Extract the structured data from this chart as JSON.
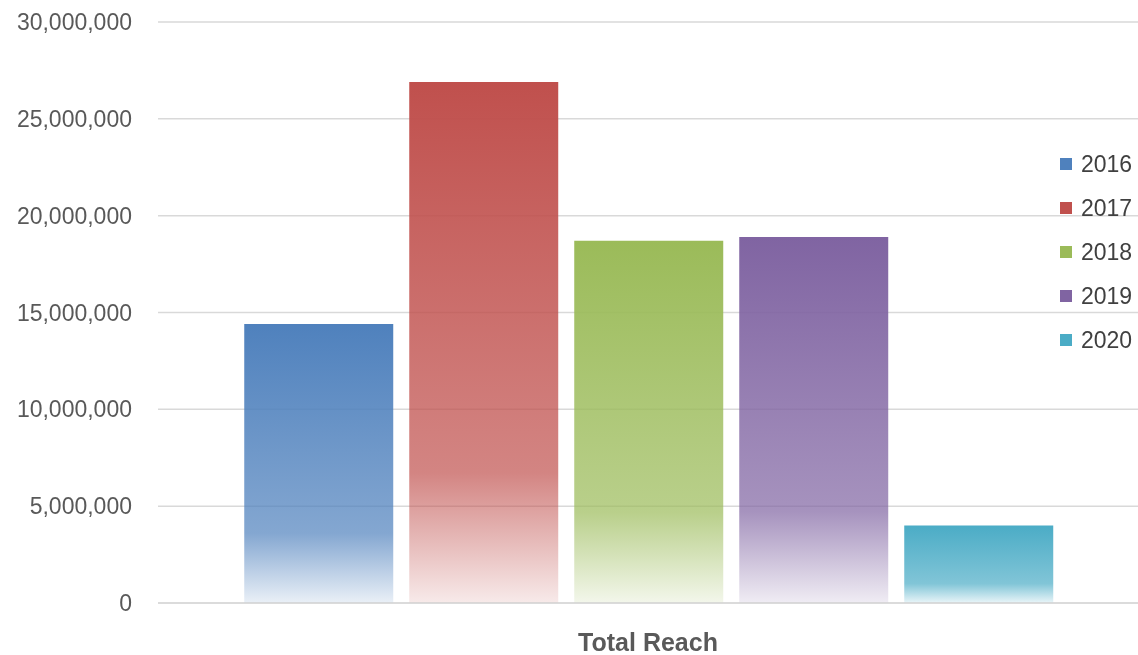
{
  "chart_data": {
    "type": "bar",
    "categories": [
      "Total Reach"
    ],
    "series": [
      {
        "name": "2016",
        "color": "#4f81bd",
        "values": [
          14400000
        ]
      },
      {
        "name": "2017",
        "color": "#c0504d",
        "values": [
          26900000
        ]
      },
      {
        "name": "2018",
        "color": "#9bbb59",
        "values": [
          18700000
        ]
      },
      {
        "name": "2019",
        "color": "#8064a2",
        "values": [
          18900000
        ]
      },
      {
        "name": "2020",
        "color": "#4bacc6",
        "values": [
          4000000
        ]
      }
    ],
    "ylim": [
      0,
      30000000
    ],
    "yticks": [
      0,
      {
        "value": 5000000,
        "label": "5,000,000"
      },
      {
        "value": 10000000,
        "label": "10,000,000"
      },
      {
        "value": 15000000,
        "label": "15,000,000"
      },
      {
        "value": 20000000,
        "label": "20,000,000"
      },
      {
        "value": 25000000,
        "label": "25,000,000"
      },
      {
        "value": 30000000,
        "label": "30,000,000"
      }
    ],
    "grid": "y",
    "legend": "right"
  }
}
